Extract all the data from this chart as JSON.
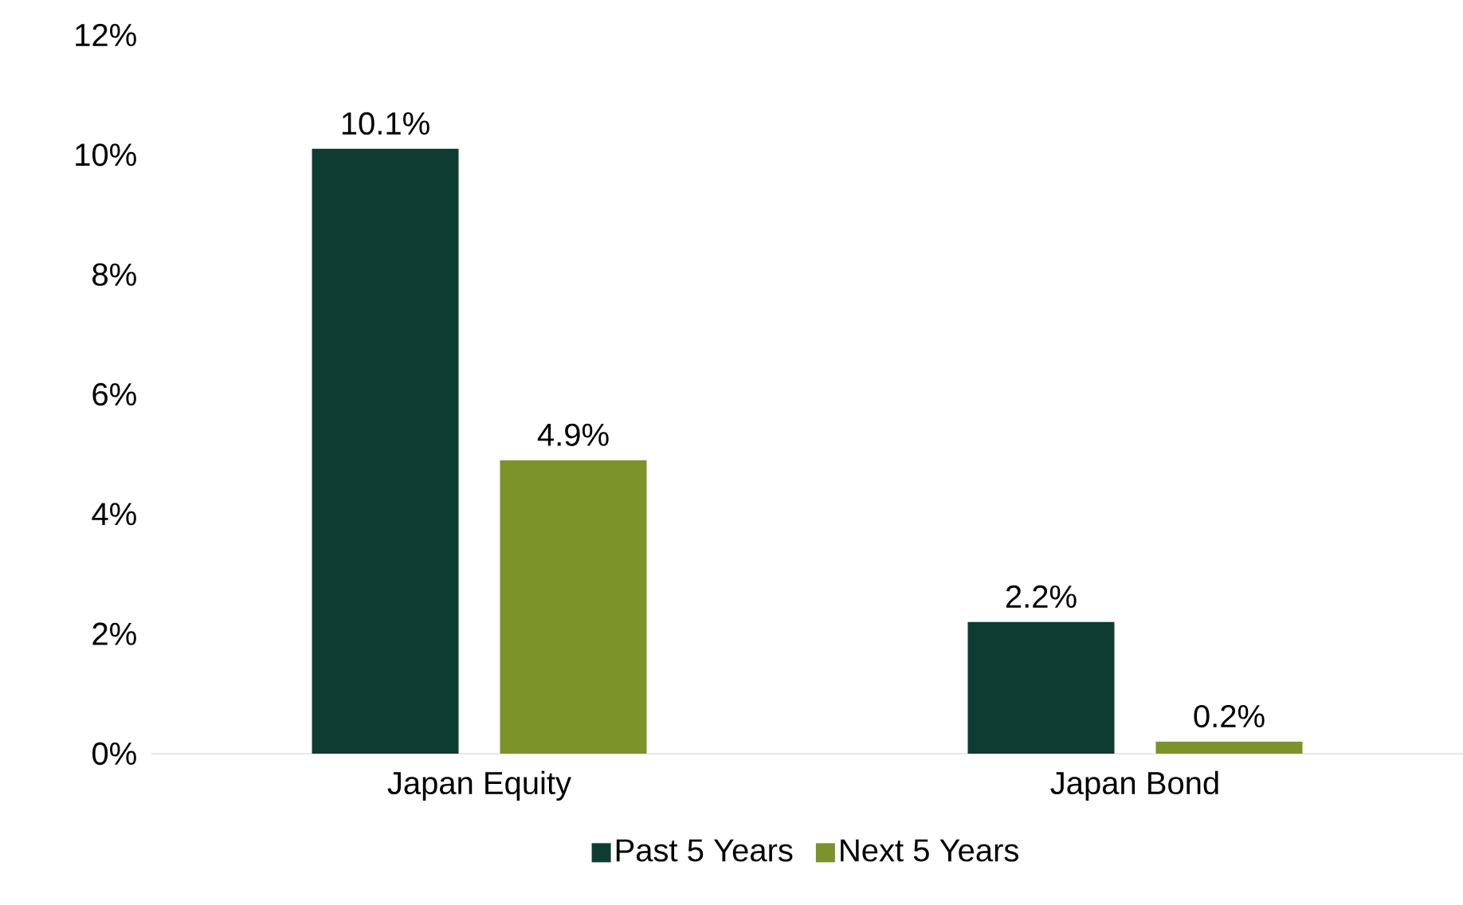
{
  "chart_data": {
    "type": "bar",
    "categories": [
      "Japan Equity",
      "Japan Bond"
    ],
    "series": [
      {
        "name": "Past 5 Years",
        "color": "#0e3b32",
        "values": [
          10.1,
          2.2
        ],
        "value_labels": [
          "10.1%",
          "2.2%"
        ]
      },
      {
        "name": "Next 5 Years",
        "color": "#7b9328",
        "values": [
          4.9,
          0.2
        ],
        "value_labels": [
          "4.9%",
          "0.2%"
        ]
      }
    ],
    "ylim": [
      0,
      12
    ],
    "yticks": [
      {
        "value": 0,
        "label": "0%"
      },
      {
        "value": 2,
        "label": "2%"
      },
      {
        "value": 4,
        "label": "4%"
      },
      {
        "value": 6,
        "label": "6%"
      },
      {
        "value": 8,
        "label": "8%"
      },
      {
        "value": 10,
        "label": "10%"
      },
      {
        "value": 12,
        "label": "12%"
      }
    ],
    "legend": "bottom"
  }
}
